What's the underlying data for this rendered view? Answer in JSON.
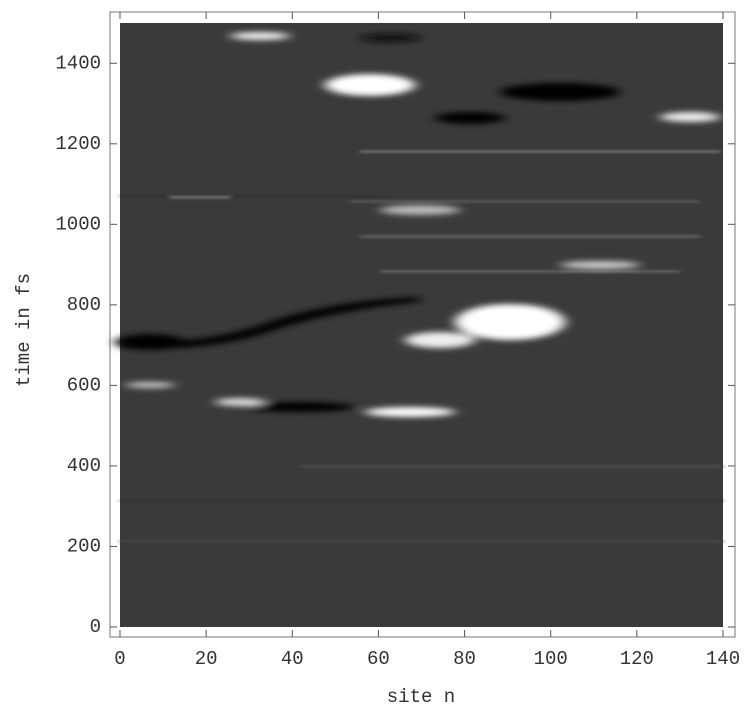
{
  "chart_data": {
    "type": "density",
    "x_label": "site n",
    "y_label": "time in fs",
    "xlim": [
      0,
      140
    ],
    "ylim": [
      0,
      1500
    ],
    "xticks": [
      0,
      20,
      40,
      60,
      80,
      100,
      120,
      140
    ],
    "yticks": [
      0,
      200,
      400,
      600,
      800,
      1000,
      1200,
      1400
    ]
  }
}
